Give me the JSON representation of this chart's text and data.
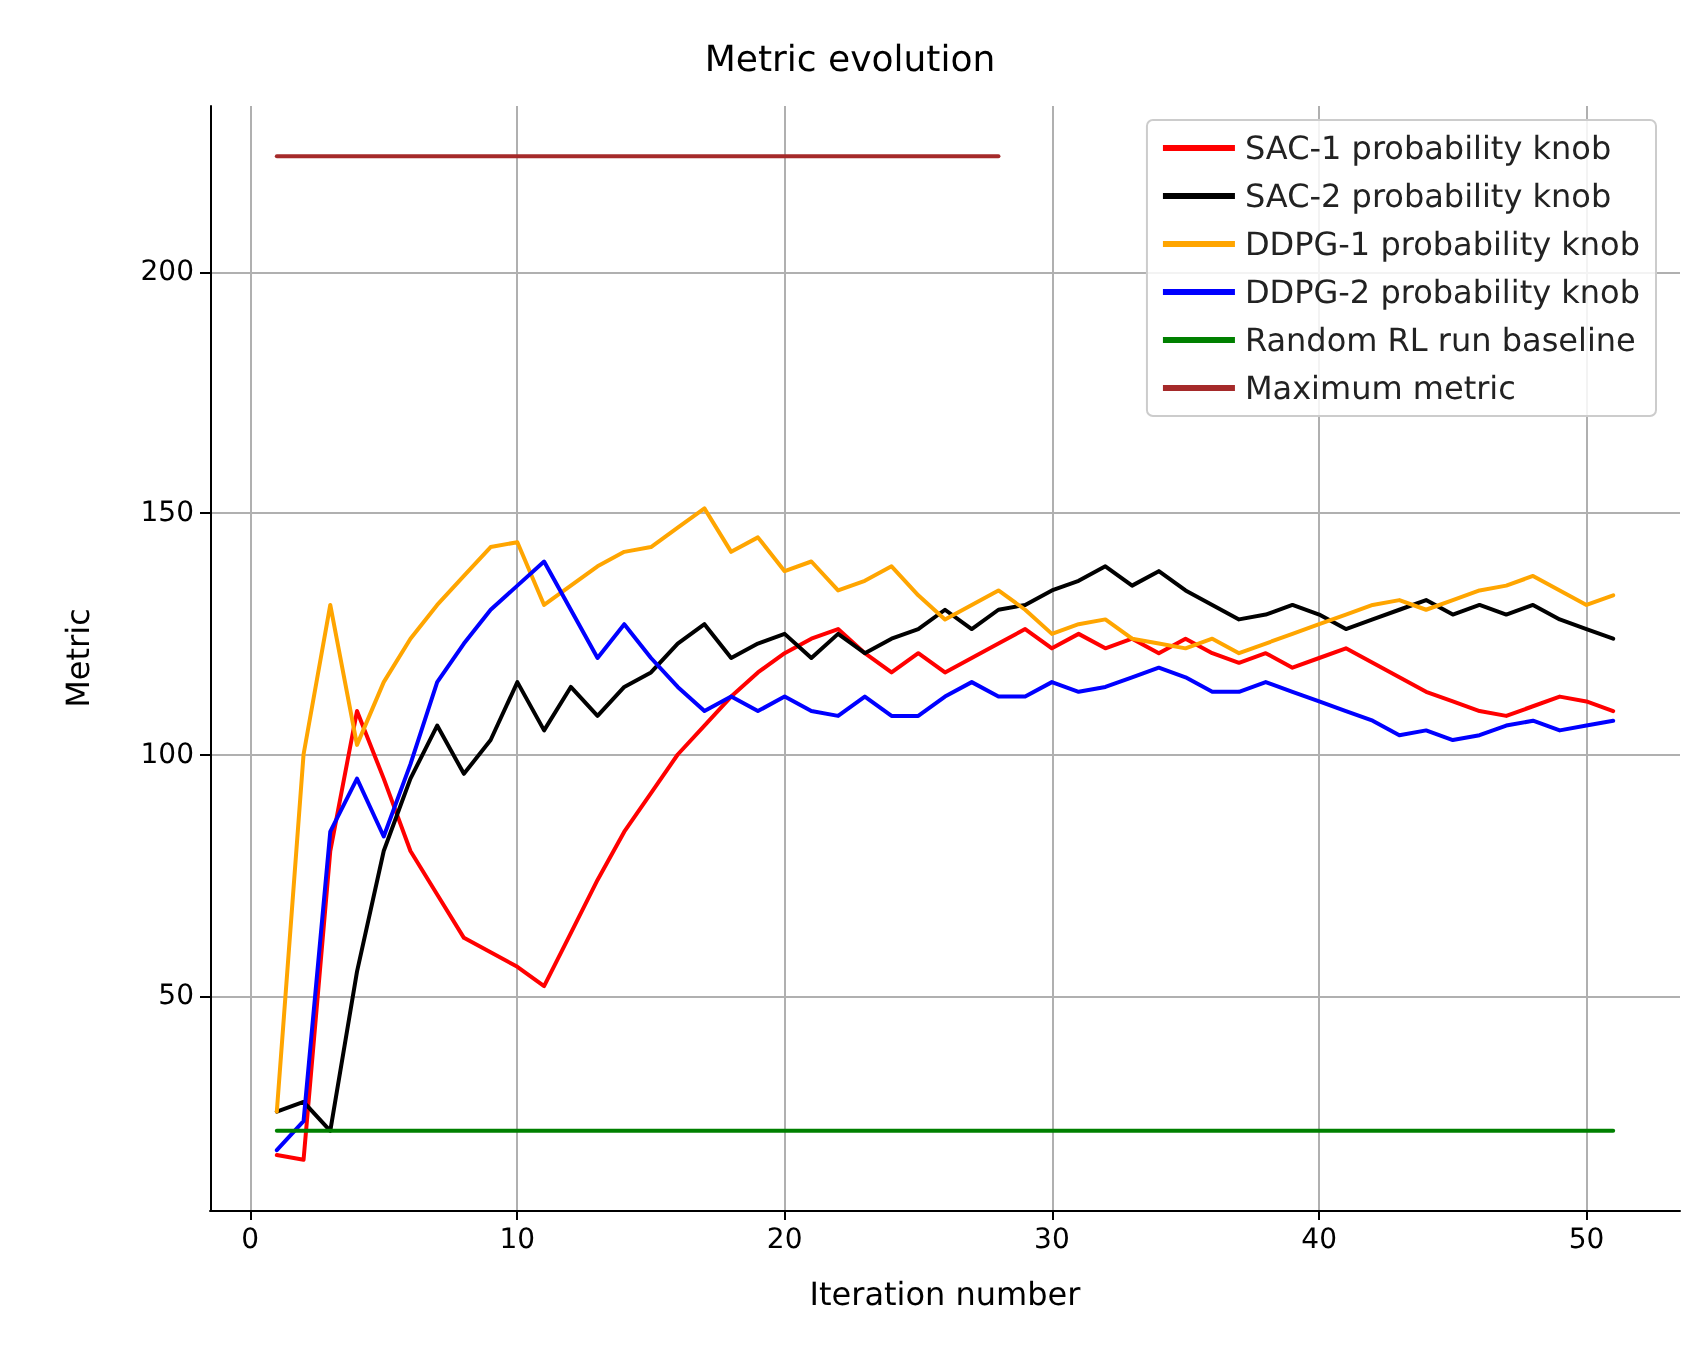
{
  "chart_data": {
    "type": "line",
    "title": "Metric evolution",
    "xlabel": "Iteration number",
    "ylabel": "Metric",
    "x": [
      1,
      2,
      3,
      4,
      5,
      6,
      7,
      8,
      9,
      10,
      11,
      12,
      13,
      14,
      15,
      16,
      17,
      18,
      19,
      20,
      21,
      22,
      23,
      24,
      25,
      26,
      27,
      28,
      29,
      30,
      31,
      32,
      33,
      34,
      35,
      36,
      37,
      38,
      39,
      40,
      41,
      42,
      43,
      44,
      45,
      46,
      47,
      48,
      49,
      50,
      51
    ],
    "xlim": [
      -1.5,
      53.5
    ],
    "xticks": [
      0,
      10,
      20,
      30,
      40,
      50
    ],
    "ylim": [
      5.6,
      234.4
    ],
    "yticks": [
      50,
      100,
      150,
      200
    ],
    "grid": true,
    "legend": "top right",
    "line_style": "solid",
    "marker": "none",
    "series": [
      {
        "name": "SAC-1 probability knob",
        "color": "#ff0000",
        "values": [
          17,
          16,
          80,
          109,
          95,
          80,
          71,
          62,
          59,
          56,
          52,
          63,
          74,
          84,
          92,
          100,
          106,
          112,
          117,
          121,
          124,
          126,
          121,
          117,
          121,
          117,
          120,
          123,
          126,
          122,
          125,
          122,
          124,
          121,
          124,
          121,
          119,
          121,
          118,
          120,
          122,
          119,
          116,
          113,
          111,
          109,
          108,
          110,
          112,
          111,
          109
        ]
      },
      {
        "name": "SAC-2 probability knob",
        "color": "#000000",
        "values": [
          26,
          28,
          22,
          55,
          80,
          95,
          106,
          96,
          103,
          115,
          105,
          114,
          108,
          114,
          117,
          123,
          127,
          120,
          123,
          125,
          120,
          125,
          121,
          124,
          126,
          130,
          126,
          130,
          131,
          134,
          136,
          139,
          135,
          138,
          134,
          131,
          128,
          129,
          131,
          129,
          126,
          128,
          130,
          132,
          129,
          131,
          129,
          131,
          128,
          126,
          124
        ]
      },
      {
        "name": "DDPG-1 probability knob",
        "color": "#ffa500",
        "values": [
          26,
          100,
          131,
          102,
          115,
          124,
          131,
          137,
          143,
          144,
          131,
          135,
          139,
          142,
          143,
          147,
          151,
          142,
          145,
          138,
          140,
          134,
          136,
          139,
          133,
          128,
          131,
          134,
          130,
          125,
          127,
          128,
          124,
          123,
          122,
          124,
          121,
          123,
          125,
          127,
          129,
          131,
          132,
          130,
          132,
          134,
          135,
          137,
          134,
          131,
          133
        ]
      },
      {
        "name": "DDPG-2 probability knob",
        "color": "#0000ff",
        "values": [
          18,
          24,
          84,
          95,
          83,
          98,
          115,
          123,
          130,
          135,
          140,
          130,
          120,
          127,
          120,
          114,
          109,
          112,
          109,
          112,
          109,
          108,
          112,
          108,
          108,
          112,
          115,
          112,
          112,
          115,
          113,
          114,
          116,
          118,
          116,
          113,
          113,
          115,
          113,
          111,
          109,
          107,
          104,
          105,
          103,
          104,
          106,
          107,
          105,
          106,
          107
        ]
      },
      {
        "name": "Random RL run baseline",
        "color": "#008000",
        "values": [
          22,
          22,
          22,
          22,
          22,
          22,
          22,
          22,
          22,
          22,
          22,
          22,
          22,
          22,
          22,
          22,
          22,
          22,
          22,
          22,
          22,
          22,
          22,
          22,
          22,
          22,
          22,
          22,
          22,
          22,
          22,
          22,
          22,
          22,
          22,
          22,
          22,
          22,
          22,
          22,
          22,
          22,
          22,
          22,
          22,
          22,
          22,
          22,
          22,
          22,
          22
        ]
      },
      {
        "name": "Maximum metric",
        "color": "#a52a2a",
        "values": [
          224,
          224,
          224,
          224,
          224,
          224,
          224,
          224,
          224,
          224,
          224,
          224,
          224,
          224,
          224,
          224,
          224,
          224,
          224,
          224,
          224,
          224,
          224,
          224,
          224,
          224,
          224,
          224,
          null,
          null,
          null,
          null,
          null,
          null,
          null,
          null,
          null,
          null,
          null,
          null,
          null,
          null,
          null,
          null,
          null,
          null,
          null,
          null,
          null,
          null,
          null
        ]
      }
    ]
  }
}
